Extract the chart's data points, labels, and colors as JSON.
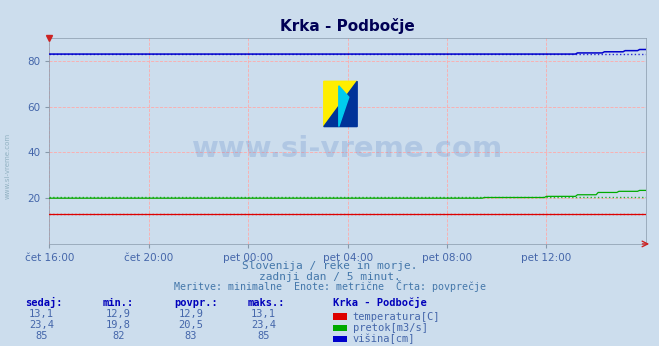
{
  "title": "Krka - Podbočje",
  "bg_color": "#ccdded",
  "plot_bg_color": "#ccdded",
  "grid_color": "#ffaaaa",
  "tick_color": "#4466aa",
  "ylim": [
    0,
    90
  ],
  "yticks": [
    20,
    40,
    60,
    80
  ],
  "xlim": [
    0,
    288
  ],
  "xtick_positions": [
    0,
    48,
    96,
    144,
    192,
    240
  ],
  "xtick_labels": [
    "čet 16:00",
    "čet 20:00",
    "pet 00:00",
    "pet 04:00",
    "pet 08:00",
    "pet 12:00"
  ],
  "watermark": "www.si-vreme.com",
  "watermark_color": "#3366bb",
  "watermark_alpha": 0.18,
  "subtitle1": "Slovenija / reke in morje.",
  "subtitle2": "zadnji dan / 5 minut.",
  "subtitle3": "Meritve: minimalne  Enote: metrične  Črta: povprečje",
  "subtitle_color": "#4477aa",
  "legend_title": "Krka - Podbočje",
  "series": [
    {
      "name": "temperatura[C]",
      "color": "#dd0000"
    },
    {
      "name": "pretok[m3/s]",
      "color": "#00aa00"
    },
    {
      "name": "višina[cm]",
      "color": "#0000cc"
    }
  ],
  "table_headers": [
    "sedaj:",
    "min.:",
    "povpr.:",
    "maks.:"
  ],
  "table_values_sedaj": [
    "13,1",
    "23,4",
    "85"
  ],
  "table_values_min": [
    "12,9",
    "19,8",
    "82"
  ],
  "table_values_povpr": [
    "12,9",
    "20,5",
    "83"
  ],
  "table_values_maks": [
    "13,1",
    "23,4",
    "85"
  ],
  "table_color": "#4466aa",
  "table_header_color": "#0000bb",
  "left_label": "www.si-vreme.com",
  "left_label_color": "#88aabb",
  "temp_avg": 13.0,
  "pretok_avg": 20.5,
  "visina_avg": 83.0
}
